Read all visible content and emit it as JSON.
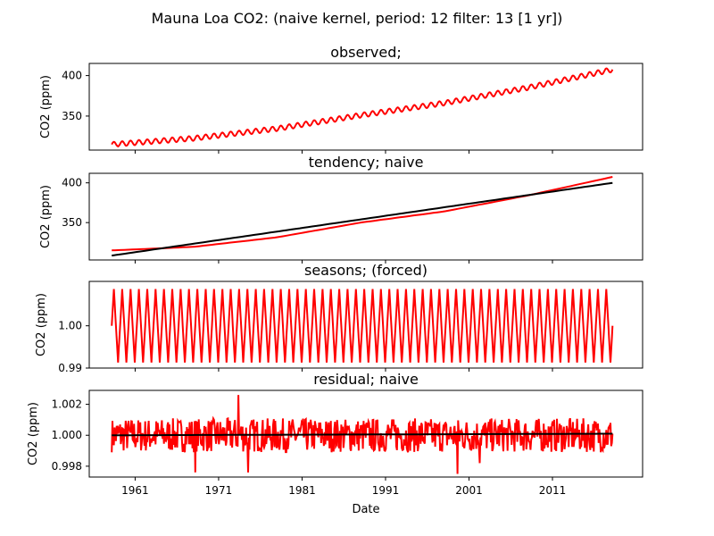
{
  "figure_title": "Mauna Loa CO2: (naive kernel, period: 12 filter: 13 [1 yr])",
  "xlabel": "Date",
  "colors": {
    "primary": "#ff0000",
    "secondary": "#000000"
  },
  "chart_data": [
    {
      "type": "line",
      "title": "observed;",
      "xlabel": "",
      "ylabel": "CO2 (ppm)",
      "xlim": [
        1955.5,
        2021.8
      ],
      "ylim": [
        308,
        415
      ],
      "yticks": [
        {
          "v": 350,
          "label": "350"
        },
        {
          "v": 400,
          "label": "400"
        }
      ],
      "xticks": [],
      "series": [
        {
          "color": "#ff0000",
          "base": [
            [
              1958.2,
              315.0
            ],
            [
              1968,
              322.5
            ],
            [
              1978,
              334.5
            ],
            [
              1988,
              351.0
            ],
            [
              1998,
              366.0
            ],
            [
              2008,
              385.0
            ],
            [
              2018.2,
              407.5
            ]
          ],
          "seasonal_amplitude": 3.0
        }
      ]
    },
    {
      "type": "line",
      "title": "tendency; naive",
      "xlabel": "",
      "ylabel": "CO2 (ppm)",
      "xlim": [
        1955.5,
        2021.8
      ],
      "ylim": [
        303,
        412
      ],
      "yticks": [
        {
          "v": 350,
          "label": "350"
        },
        {
          "v": 400,
          "label": "400"
        }
      ],
      "xticks": [],
      "series": [
        {
          "color": "#ff0000",
          "base": [
            [
              1958.2,
              315.0
            ],
            [
              1968,
              319.5
            ],
            [
              1978,
              331.5
            ],
            [
              1988,
              350.0
            ],
            [
              1998,
              364.0
            ],
            [
              2008,
              384.0
            ],
            [
              2018.2,
              407.5
            ]
          ],
          "seasonal_amplitude": 0
        },
        {
          "color": "#000000",
          "base": [
            [
              1958.2,
              308.5
            ],
            [
              2018.2,
              400.0
            ]
          ],
          "seasonal_amplitude": 0
        }
      ]
    },
    {
      "type": "line",
      "title": "seasons;  (forced)",
      "xlabel": "",
      "ylabel": "CO2 (ppm)",
      "xlim": [
        1955.5,
        2021.8
      ],
      "ylim": [
        0.99,
        1.0105
      ],
      "yticks": [
        {
          "v": 0.99,
          "label": "0.99"
        },
        {
          "v": 1.0,
          "label": "1.00"
        }
      ],
      "xticks": [],
      "series": [
        {
          "color": "#ff0000",
          "base": [
            [
              1958.2,
              1.0
            ],
            [
              2018.2,
              1.0
            ]
          ],
          "seasonal_amplitude": 0.0087,
          "oscillation": "triangle"
        }
      ]
    },
    {
      "type": "line",
      "title": "residual; naive",
      "xlabel": "Date",
      "ylabel": "CO2 (ppm)",
      "xlim": [
        1955.5,
        2021.8
      ],
      "ylim": [
        0.9973,
        1.0029
      ],
      "yticks": [
        {
          "v": 0.998,
          "label": "0.998"
        },
        {
          "v": 1.0,
          "label": "1.000"
        },
        {
          "v": 1.002,
          "label": "1.002"
        }
      ],
      "xticks": [
        {
          "v": 1961,
          "label": "1961"
        },
        {
          "v": 1971,
          "label": "1971"
        },
        {
          "v": 1981,
          "label": "1981"
        },
        {
          "v": 1991,
          "label": "1991"
        },
        {
          "v": 2001,
          "label": "2001"
        },
        {
          "v": 2011,
          "label": "2011"
        }
      ],
      "series": [
        {
          "color": "#ff0000",
          "base": [
            [
              1958.2,
              1.0
            ],
            [
              2018.2,
              1.0
            ]
          ],
          "noise_amplitude": 0.0011,
          "spikes": [
            [
              1973.4,
              1.0026
            ],
            [
              1974.5,
              0.9976
            ],
            [
              1999.6,
              0.9975
            ],
            [
              1968.2,
              0.9976
            ],
            [
              2002.3,
              0.9982
            ]
          ]
        },
        {
          "color": "#000000",
          "base": [
            [
              1958.2,
              1.0
            ],
            [
              2018.2,
              1.0001
            ]
          ],
          "seasonal_amplitude": 0
        }
      ]
    }
  ]
}
